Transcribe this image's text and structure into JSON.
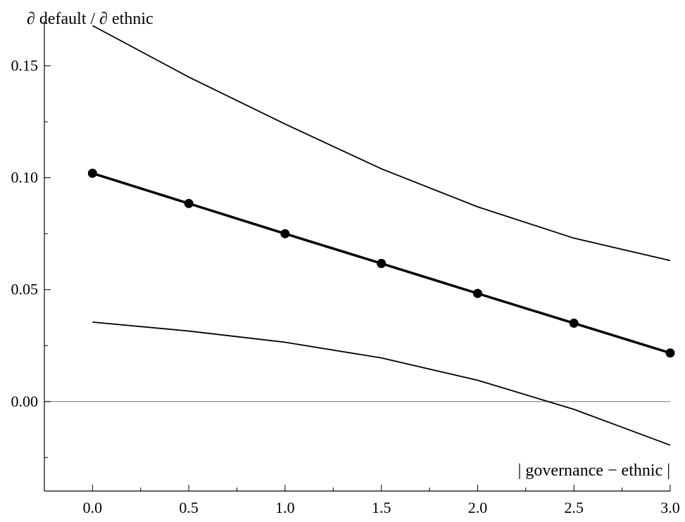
{
  "chart_data": {
    "type": "line",
    "ylabel": "∂ default / ∂ ethnic",
    "xlabel": "| governance − ethnic |",
    "xlim": [
      -0.25,
      3.0
    ],
    "ylim": [
      -0.04,
      0.17
    ],
    "x_ticks": [
      "0.0",
      "0.5",
      "1.0",
      "1.5",
      "2.0",
      "2.5",
      "3.0"
    ],
    "y_ticks": [
      "0.00",
      "0.05",
      "0.10",
      "0.15"
    ],
    "reference_line_y": 0,
    "grid": false,
    "legend": false,
    "series": [
      {
        "x": [
          0.0,
          0.5,
          1.0,
          1.5,
          2.0,
          2.5,
          3.0
        ],
        "values": [
          0.102,
          0.0885,
          0.075,
          0.0617,
          0.0483,
          0.035,
          0.0217
        ],
        "markers": true,
        "style": "thick"
      },
      {
        "x": [
          0.0,
          0.5,
          1.0,
          1.5,
          2.0,
          2.5,
          3.0
        ],
        "values": [
          0.168,
          0.145,
          0.124,
          0.104,
          0.087,
          0.073,
          0.063
        ],
        "markers": false,
        "style": "thin"
      },
      {
        "x": [
          0.0,
          0.5,
          1.0,
          1.5,
          2.0,
          2.5,
          3.0
        ],
        "values": [
          0.0355,
          0.0315,
          0.0265,
          0.0195,
          0.0095,
          -0.0035,
          -0.0195
        ],
        "markers": false,
        "style": "thin"
      }
    ]
  }
}
